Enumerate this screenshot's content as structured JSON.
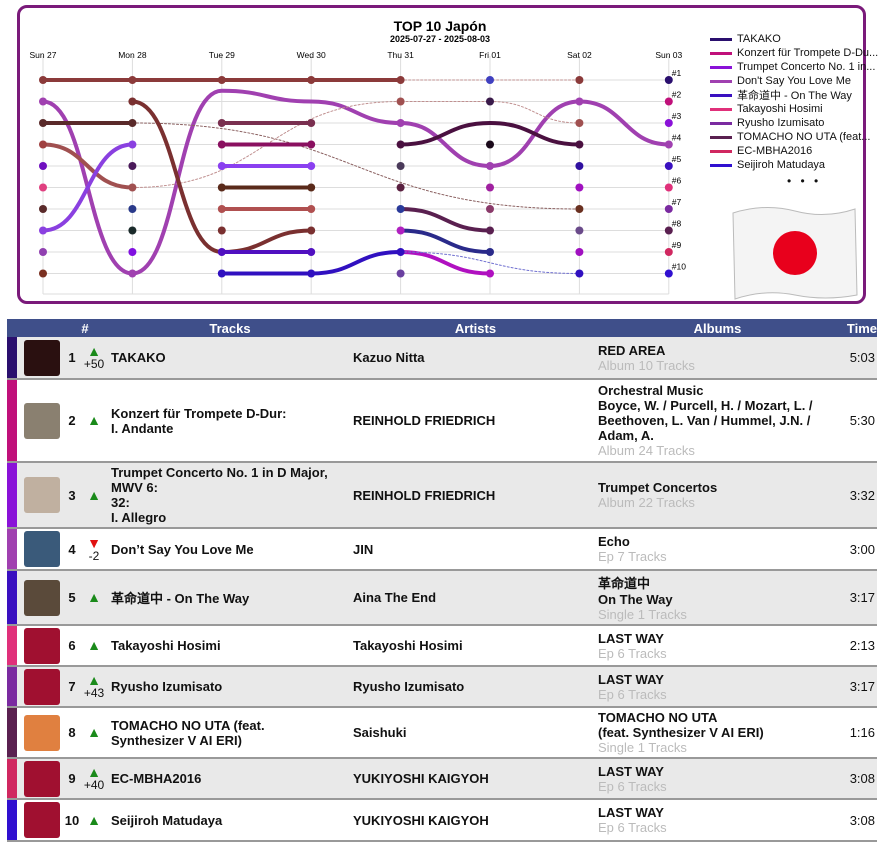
{
  "chart_data": {
    "type": "line",
    "title": "TOP 10 Japón",
    "subtitle": "2025-07-27 - 2025-08-03",
    "days": [
      "Sun 27",
      "Mon 28",
      "Tue 29",
      "Wed 30",
      "Thu 31",
      "Fri 01",
      "Sat 02",
      "Sun 03"
    ],
    "rank_labels": [
      "#1",
      "#2",
      "#3",
      "#4",
      "#5",
      "#6",
      "#7",
      "#8",
      "#9",
      "#10"
    ],
    "series": [
      {
        "color": "#8b3a3a",
        "ranks": [
          1,
          1,
          1,
          1,
          1,
          null,
          null,
          null
        ],
        "style": "solid"
      },
      {
        "color": "#c09090",
        "ranks": [
          null,
          null,
          null,
          null,
          1,
          1,
          1,
          null
        ],
        "style": "dotted"
      },
      {
        "color": "#a040b0",
        "ranks": [
          2,
          10,
          1.5,
          2,
          3,
          5,
          2,
          4
        ],
        "style": "solid"
      },
      {
        "color": "#5a2a2a",
        "ranks": [
          3,
          3,
          null,
          null,
          null,
          null,
          null,
          null
        ],
        "style": "solid"
      },
      {
        "color": "#8a6060",
        "ranks": [
          null,
          3,
          null,
          null,
          null,
          null,
          7,
          null
        ],
        "style": "dotted"
      },
      {
        "color": "#a05050",
        "ranks": [
          4,
          6,
          null,
          null,
          null,
          null,
          null,
          null
        ],
        "style": "solid"
      },
      {
        "color": "#c09090",
        "ranks": [
          null,
          6,
          null,
          null,
          2,
          2,
          3,
          null
        ],
        "style": "dotted"
      },
      {
        "color": "#8a40e0",
        "ranks": [
          8,
          4,
          null,
          null,
          null,
          null,
          null,
          null
        ],
        "style": "solid"
      },
      {
        "color": "#7a3030",
        "ranks": [
          null,
          2,
          9,
          8,
          null,
          null,
          null,
          null
        ],
        "style": "solid"
      },
      {
        "color": "#7a3050",
        "ranks": [
          null,
          null,
          3,
          3,
          null,
          null,
          null,
          null
        ],
        "style": "solid"
      },
      {
        "color": "#8a1060",
        "ranks": [
          null,
          null,
          4,
          4,
          null,
          null,
          null,
          null
        ],
        "style": "solid"
      },
      {
        "color": "#8a40f0",
        "ranks": [
          null,
          null,
          5,
          5,
          null,
          null,
          null,
          null
        ],
        "style": "solid"
      },
      {
        "color": "#5a2a1a",
        "ranks": [
          null,
          null,
          6,
          6,
          null,
          null,
          null,
          null
        ],
        "style": "solid"
      },
      {
        "color": "#b05050",
        "ranks": [
          null,
          null,
          7,
          7,
          null,
          null,
          null,
          null
        ],
        "style": "solid"
      },
      {
        "color": "#5010c0",
        "ranks": [
          null,
          null,
          9,
          9,
          null,
          null,
          null,
          null
        ],
        "style": "solid"
      },
      {
        "color": "#3010c0",
        "ranks": [
          null,
          null,
          10,
          10,
          9,
          null,
          null,
          null
        ],
        "style": "solid"
      },
      {
        "color": "#4a1040",
        "ranks": [
          null,
          null,
          null,
          null,
          4,
          3,
          4,
          null
        ],
        "style": "solid"
      },
      {
        "color": "#5a2050",
        "ranks": [
          null,
          null,
          null,
          null,
          7,
          8,
          null,
          null
        ],
        "style": "solid"
      },
      {
        "color": "#2a2a8a",
        "ranks": [
          null,
          null,
          null,
          null,
          8,
          9,
          null,
          null
        ],
        "style": "solid"
      },
      {
        "color": "#b010c0",
        "ranks": [
          null,
          null,
          null,
          null,
          9,
          10,
          null,
          null
        ],
        "style": "solid"
      },
      {
        "color": "#7070d0",
        "ranks": [
          null,
          null,
          null,
          null,
          9,
          null,
          10,
          null
        ],
        "style": "dotted"
      }
    ],
    "dots": [
      [
        "#8b3a3a",
        "#a040b0",
        "#5a2a2a",
        "#a04040",
        "#7010c0",
        "#e04080",
        "#5a2a2a",
        "#8a40e0",
        "#9040b0",
        "#7a3020"
      ],
      [
        "#8b3a3a",
        "#7a3030",
        "#5a2a2a",
        "#8a40e0",
        "#4a1a5a",
        "#a05050",
        "#2a3a8a",
        "#1a2a2a",
        "#8010e0",
        "#a040b0"
      ],
      [
        "#8b3a3a",
        null,
        "#7a3050",
        "#8a1060",
        "#8a40f0",
        "#5a2a1a",
        "#b05050",
        "#7a3030",
        "#5010c0",
        "#3010c0"
      ],
      [
        "#8b3a3a",
        null,
        "#7a3050",
        "#8a1060",
        "#8a40f0",
        "#5a2a1a",
        "#b05050",
        "#7a3030",
        "#5010c0",
        "#3010c0"
      ],
      [
        "#8b3a3a",
        "#a05050",
        "#a040b0",
        "#4a1040",
        "#4a3a5a",
        "#5a2040",
        "#2a3a9a",
        "#b020c0",
        "#3010c0",
        "#6a40a0"
      ],
      [
        "#4040c0",
        "#3a1a4a",
        null,
        "#1a0a1a",
        "#a040b0",
        "#a020a0",
        "#8a3a6a",
        "#5a2050",
        "#2a2a8a",
        "#b010c0"
      ],
      [
        "#8b3a3a",
        "#a040b0",
        "#a05050",
        "#4a1040",
        "#3010a0",
        "#a010c0",
        "#6a3020",
        "#6a4a8a",
        "#a010c0",
        "#3010c0"
      ],
      [
        "#2a0f6e",
        "#c0107a",
        "#8a12d8",
        "#a040b0",
        "#3a10c0",
        "#e0307a",
        "#7a2aa0",
        "#5a2050",
        "#d02860",
        "#3010d0"
      ]
    ],
    "legend": [
      {
        "label": "TAKAKO",
        "color": "#2a0f6e"
      },
      {
        "label": "Konzert für Trompete D-Du...",
        "color": "#c0107a"
      },
      {
        "label": "Trumpet Concerto No. 1 in...",
        "color": "#8a12d8"
      },
      {
        "label": "Don't Say You Love Me",
        "color": "#a040b0"
      },
      {
        "label": "革命道中 - On The Way",
        "color": "#3a10c0"
      },
      {
        "label": "Takayoshi Hosimi",
        "color": "#e0307a"
      },
      {
        "label": "Ryusho Izumisato",
        "color": "#7a2aa0"
      },
      {
        "label": "TOMACHO NO UTA (feat...",
        "color": "#5a2050"
      },
      {
        "label": "EC-MBHA2016",
        "color": "#d02860"
      },
      {
        "label": "Seijiroh Matudaya",
        "color": "#3010d0"
      }
    ],
    "legend_more": "• • •"
  },
  "table": {
    "headers": {
      "num": "#",
      "tracks": "Tracks",
      "artists": "Artists",
      "albums": "Albums",
      "time": "Time"
    },
    "rows": [
      {
        "rank": "1",
        "move": "up",
        "delta": "+50",
        "track": "TAKAKO",
        "artist": "Kazuo Nitta",
        "album": "RED AREA",
        "album_info": "Album 10 Tracks",
        "time": "5:03",
        "color": "#2a0f6e",
        "thumb": "#2a1010"
      },
      {
        "rank": "2",
        "move": "up",
        "delta": "",
        "track": "Konzert für Trompete D-Dur:\nI. Andante",
        "artist": "REINHOLD FRIEDRICH",
        "album": "Orchestral Music\nBoyce, W. / Purcell, H. / Mozart, L. /\nBeethoven, L. Van / Hummel, J.N. /\nAdam, A.",
        "album_info": "Album 24 Tracks",
        "time": "5:30",
        "color": "#c0107a",
        "thumb": "#8a8070"
      },
      {
        "rank": "3",
        "move": "up",
        "delta": "",
        "track": "Trumpet Concerto No. 1 in D Major,\nMWV 6:\n32:\nI. Allegro",
        "artist": "REINHOLD FRIEDRICH",
        "album": "Trumpet Concertos",
        "album_info": "Album 22 Tracks",
        "time": "3:32",
        "color": "#8a12d8",
        "thumb": "#c0b0a0"
      },
      {
        "rank": "4",
        "move": "down",
        "delta": "-2",
        "track": "Don’t Say You Love Me",
        "artist": "JIN",
        "album": "Echo",
        "album_info": "Ep 7 Tracks",
        "time": "3:00",
        "color": "#a040b0",
        "thumb": "#3a5a7a"
      },
      {
        "rank": "5",
        "move": "up",
        "delta": "",
        "track": "革命道中 - On The Way",
        "artist": "Aina The End",
        "album": "革命道中\nOn The Way",
        "album_info": "Single 1 Tracks",
        "time": "3:17",
        "color": "#3a10c0",
        "thumb": "#5a4a3a"
      },
      {
        "rank": "6",
        "move": "up",
        "delta": "",
        "track": "Takayoshi Hosimi",
        "artist": "Takayoshi Hosimi",
        "album": "LAST WAY",
        "album_info": "Ep 6 Tracks",
        "time": "2:13",
        "color": "#e0307a",
        "thumb": "#a01030"
      },
      {
        "rank": "7",
        "move": "up",
        "delta": "+43",
        "track": "Ryusho Izumisato",
        "artist": "Ryusho Izumisato",
        "album": "LAST WAY",
        "album_info": "Ep 6 Tracks",
        "time": "3:17",
        "color": "#7a2aa0",
        "thumb": "#a01030"
      },
      {
        "rank": "8",
        "move": "up",
        "delta": "",
        "track": "TOMACHO NO UTA (feat.\nSynthesizer V AI ERI)",
        "artist": "Saishuki",
        "album": "TOMACHO NO UTA\n(feat. Synthesizer V AI ERI)",
        "album_info": "Single 1 Tracks",
        "time": "1:16",
        "color": "#5a2050",
        "thumb": "#e08040"
      },
      {
        "rank": "9",
        "move": "up",
        "delta": "+40",
        "track": "EC-MBHA2016",
        "artist": "YUKIYOSHI KAIGYOH",
        "album": "LAST WAY",
        "album_info": "Ep 6 Tracks",
        "time": "3:08",
        "color": "#d02860",
        "thumb": "#a01030"
      },
      {
        "rank": "10",
        "move": "up",
        "delta": "",
        "track": "Seijiroh Matudaya",
        "artist": "YUKIYOSHI KAIGYOH",
        "album": "LAST WAY",
        "album_info": "Ep 6 Tracks",
        "time": "3:08",
        "color": "#3010d0",
        "thumb": "#a01030"
      }
    ]
  }
}
